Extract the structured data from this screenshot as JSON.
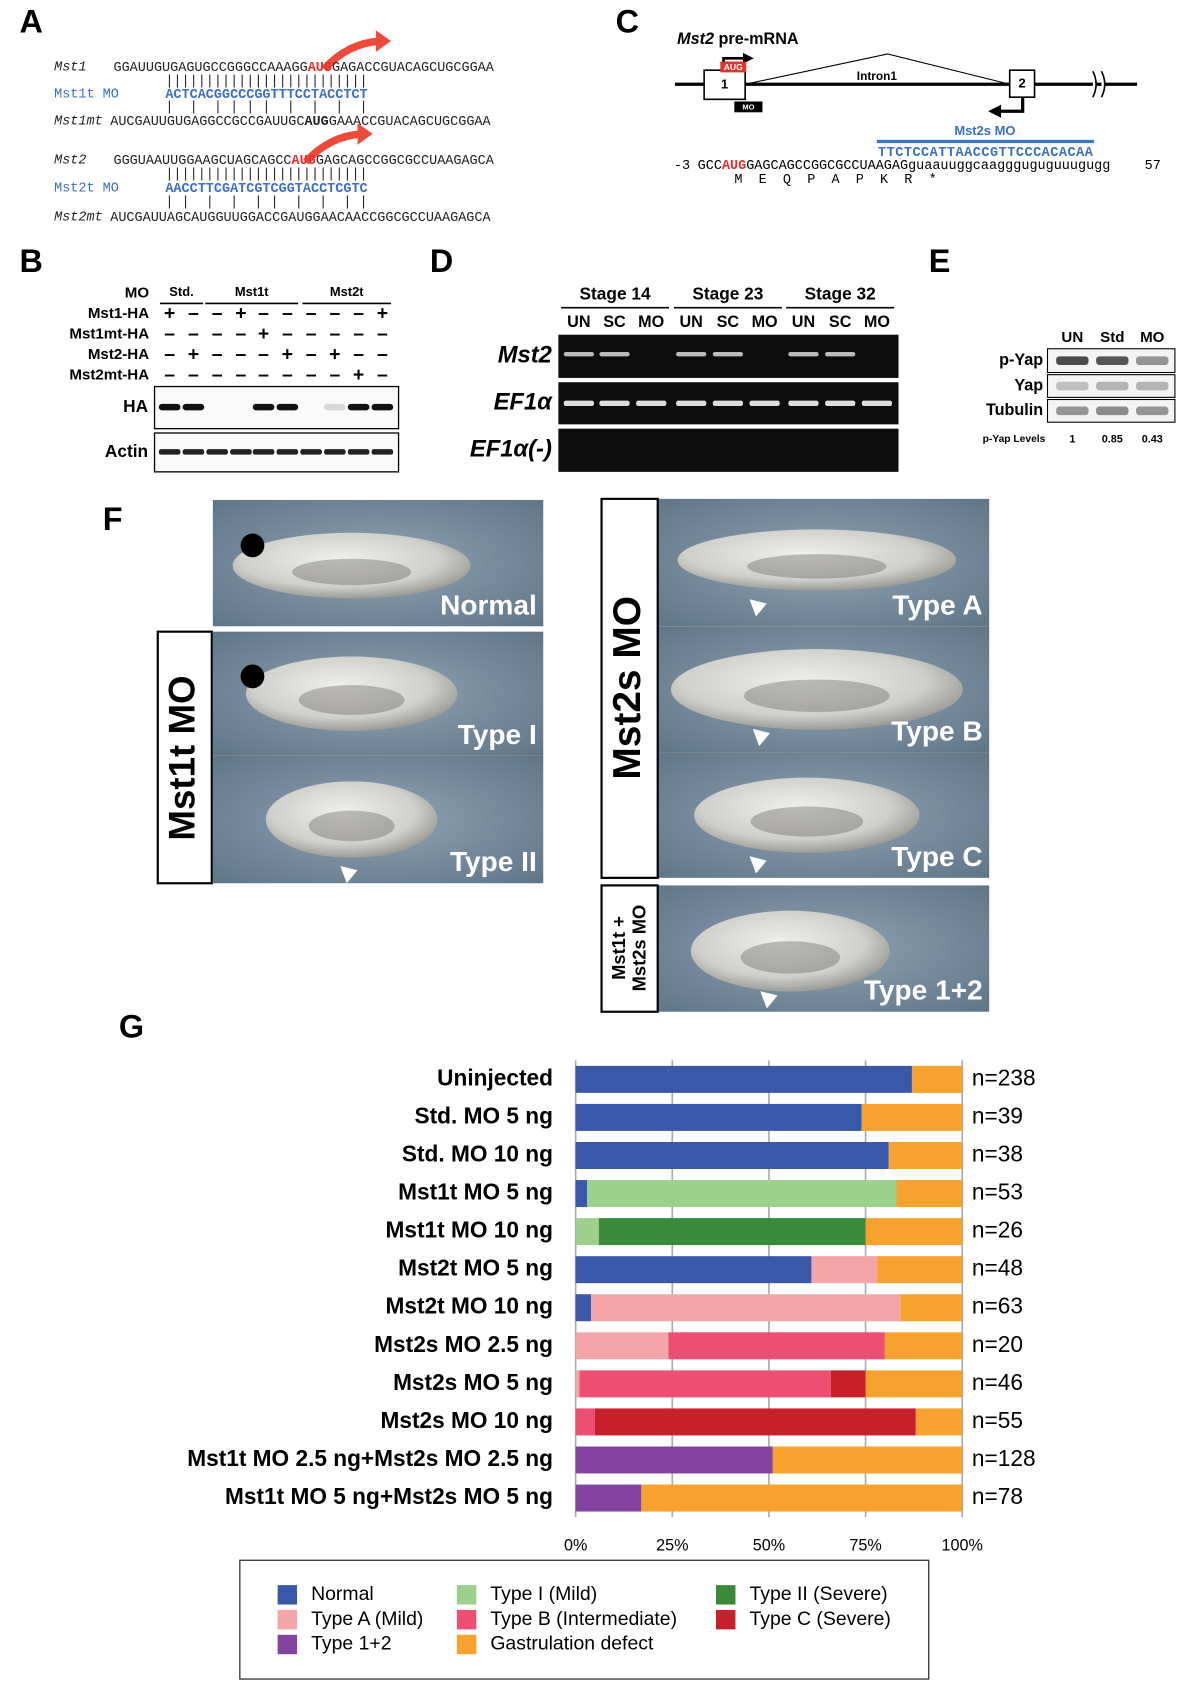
{
  "panel_labels": [
    "A",
    "B",
    "C",
    "D",
    "E",
    "F",
    "G"
  ],
  "panel_a": {
    "rows": [
      {
        "name": "Mst1",
        "seq": [
          "GGAUUGUGAGUGCCGGGCCAAAGG",
          "AUG",
          "GAGACCGUACAGCUGCGGAA"
        ]
      },
      {
        "name": "Mst1t MO",
        "seq": [
          "ACTCACGGCCCGGTTTCCTACCTCT"
        ]
      },
      {
        "name": "Mst1mt",
        "seq": [
          "AUCGAUUGUGAGGCCGCCGAUUGC",
          "AUG",
          "GAAACCGUACAGCUGCGGAA"
        ]
      },
      {
        "name": "Mst2",
        "seq": [
          "GGGUAAUUGGAAGCUAGCAGCC",
          "AUG",
          "GAGCAGCCGGCGCCUAAGAGCA"
        ]
      },
      {
        "name": "Mst2t MO",
        "seq": [
          "AACCTTCGATCGTCGGTACCTCGTC"
        ]
      },
      {
        "name": "Mst2mt",
        "seq": [
          "AUCGAUUAGCAUGGUUGGACCGAUGGAACAACCGGCGCCUAAGAGCA"
        ]
      }
    ],
    "pairs": [
      "|||||||||||||||||||||||||",
      "|  |  | | | |  |  |  |  |",
      "|||||||||||||||||||||||||",
      "| |  |  |  | |  |  |  | |"
    ]
  },
  "panel_b": {
    "mo_label": "MO",
    "groups": [
      "Std.",
      "Mst1t",
      "Mst2t"
    ],
    "rows": [
      {
        "name": "Mst1-HA",
        "signs": [
          "+",
          "–",
          "–",
          "+",
          "–",
          "–",
          "–",
          "–",
          "–",
          "+"
        ]
      },
      {
        "name": "Mst1mt-HA",
        "signs": [
          "–",
          "–",
          "–",
          "–",
          "+",
          "–",
          "–",
          "–",
          "–",
          "–"
        ]
      },
      {
        "name": "Mst2-HA",
        "signs": [
          "–",
          "+",
          "–",
          "–",
          "–",
          "+",
          "–",
          "+",
          "–",
          "–"
        ]
      },
      {
        "name": "Mst2mt-HA",
        "signs": [
          "–",
          "–",
          "–",
          "–",
          "–",
          "–",
          "–",
          "–",
          "+",
          "–"
        ]
      }
    ],
    "blots": [
      "HA",
      "Actin"
    ]
  },
  "panel_c": {
    "title_gene": "Mst2",
    "title_rest": "pre-mRNA",
    "aug": "AUG",
    "exon1": "1",
    "exon2": "2",
    "intron": "Intron1",
    "mo": "MO",
    "mo_name": "Mst2s MO",
    "mo_seq": "TTCTCCATTAACCGTTCCCACACAA",
    "start": "-3",
    "seq": [
      "GCC",
      "AUG",
      "GAGCAGCCGGCGCCUAAGAG",
      "guaauuggcaaggguguguuugugg"
    ],
    "end": "57",
    "protein": "M  E  Q  P  A  P  K  R  *"
  },
  "panel_d": {
    "stages": [
      "Stage 14",
      "Stage 23",
      "Stage 32"
    ],
    "lanes": [
      "UN",
      "SC",
      "MO",
      "UN",
      "SC",
      "MO",
      "UN",
      "SC",
      "MO"
    ],
    "rows": [
      "Mst2",
      "EF1α",
      "EF1α(-)"
    ]
  },
  "panel_e": {
    "lanes": [
      "UN",
      "Std",
      "MO"
    ],
    "rows": [
      "p-Yap",
      "Yap",
      "Tubulin"
    ],
    "level_label": "p-Yap Levels",
    "levels": [
      "1",
      "0.85",
      "0.43"
    ]
  },
  "panel_f": {
    "left_label": "Mst1t MO",
    "right_label": "Mst2s MO",
    "combo_label": [
      "Mst1t +",
      "Mst2s MO"
    ],
    "photos": [
      "Normal",
      "Type I",
      "Type II",
      "Type A",
      "Type B",
      "Type C",
      "Type 1+2"
    ]
  },
  "chart_data": {
    "type": "stacked_barh",
    "categories": [
      "Uninjected",
      "Std. MO 5 ng",
      "Std. MO 10 ng",
      "Mst1t MO 5 ng",
      "Mst1t MO 10 ng",
      "Mst2t MO 5 ng",
      "Mst2t MO 10 ng",
      "Mst2s MO 2.5 ng",
      "Mst2s MO 5 ng",
      "Mst2s MO 10 ng",
      "Mst1t MO 2.5 ng+Mst2s MO 2.5 ng",
      "Mst1t MO 5 ng+Mst2s MO 5 ng"
    ],
    "series": [
      {
        "name": "Normal",
        "color": "#3a58a8",
        "values": [
          87,
          74,
          81,
          3,
          0,
          61,
          4,
          0,
          0,
          0,
          0,
          0
        ]
      },
      {
        "name": "Type I (Mild)",
        "color": "#9dd08d",
        "values": [
          0,
          0,
          0,
          80,
          6,
          0,
          0,
          0,
          0,
          0,
          0,
          0
        ]
      },
      {
        "name": "Type II (Severe)",
        "color": "#3a8a3c",
        "values": [
          0,
          0,
          0,
          0,
          69,
          0,
          0,
          0,
          0,
          0,
          0,
          0
        ]
      },
      {
        "name": "Type A (Mild)",
        "color": "#f4a5a8",
        "values": [
          0,
          0,
          0,
          0,
          0,
          17,
          80,
          24,
          1,
          0,
          0,
          0
        ]
      },
      {
        "name": "Type B (Intermediate)",
        "color": "#ec4f72",
        "values": [
          0,
          0,
          0,
          0,
          0,
          0,
          0,
          56,
          65,
          5,
          0,
          0
        ]
      },
      {
        "name": "Type C (Severe)",
        "color": "#c8202a",
        "values": [
          0,
          0,
          0,
          0,
          0,
          0,
          0,
          0,
          9,
          83,
          0,
          0
        ]
      },
      {
        "name": "Type 1+2",
        "color": "#8543a0",
        "values": [
          0,
          0,
          0,
          0,
          0,
          0,
          0,
          0,
          0,
          0,
          51,
          17
        ]
      },
      {
        "name": "Gastrulation defect",
        "color": "#f7a22f",
        "values": [
          13,
          26,
          19,
          17,
          25,
          22,
          16,
          20,
          25,
          12,
          49,
          83
        ]
      }
    ],
    "n_labels": [
      "n=238",
      "n=39",
      "n=38",
      "n=53",
      "n=26",
      "n=48",
      "n=63",
      "n=20",
      "n=46",
      "n=55",
      "n=128",
      "n=78"
    ],
    "xlim": [
      0,
      100
    ],
    "xticks": [
      {
        "value": 0,
        "label": "0%"
      },
      {
        "value": 25,
        "label": "25%"
      },
      {
        "value": 50,
        "label": "50%"
      },
      {
        "value": 75,
        "label": "75%"
      },
      {
        "value": 100,
        "label": "100%"
      }
    ],
    "grid": true
  }
}
